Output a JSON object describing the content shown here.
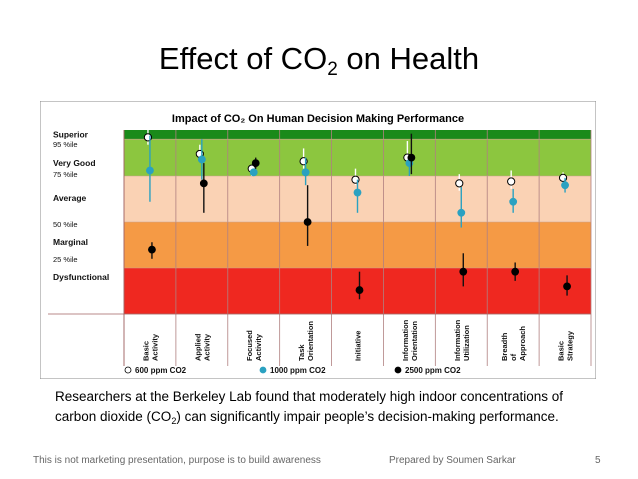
{
  "slide": {
    "title_main": "Effect of CO",
    "title_sub": "2",
    "title_end": " on Health",
    "caption_part1": "Researchers at the Berkeley Lab found that moderately high indoor concentrations of carbon dioxide (CO",
    "caption_sub": "2",
    "caption_part2": ") can significantly impair people’s decision-making performance.",
    "footer_left": "This is not marketing presentation, purpose is to build awareness",
    "footer_center": "Prepared by Soumen Sarkar",
    "page_number": "5"
  },
  "chart_data": {
    "type": "scatter",
    "title": "Impact of CO₂ On Human Decision Making Performance",
    "bands": [
      {
        "name": "Superior",
        "from": 95,
        "to": 100,
        "color": "#1a8a1a"
      },
      {
        "name": "Very Good",
        "from": 75,
        "to": 95,
        "color": "#8cc63f"
      },
      {
        "name": "Average",
        "from": 50,
        "to": 75,
        "color": "#fad2b4"
      },
      {
        "name": "Marginal",
        "from": 25,
        "to": 50,
        "color": "#f59a45"
      },
      {
        "name": "Dysfunctional",
        "from": 0,
        "to": 25,
        "color": "#ef2820"
      }
    ],
    "y_labels": [
      {
        "text": "Superior",
        "value": 97.5,
        "bold": true
      },
      {
        "text": "95 %ile",
        "value": 92.5,
        "bold": false
      },
      {
        "text": "Very Good",
        "value": 82,
        "bold": true
      },
      {
        "text": "75 %ile",
        "value": 76,
        "bold": false
      },
      {
        "text": "Average",
        "value": 63,
        "bold": true
      },
      {
        "text": "50 %ile",
        "value": 49,
        "bold": false
      },
      {
        "text": "Marginal",
        "value": 39,
        "bold": true
      },
      {
        "text": "25 %ile",
        "value": 30,
        "bold": false
      },
      {
        "text": "Dysfunctional",
        "value": 20,
        "bold": true
      }
    ],
    "ylim": [
      0,
      100
    ],
    "categories": [
      "Basic Activity",
      "Applied Activity",
      "Focused Activity",
      "Task Orientation",
      "Initiative",
      "Information Orientation",
      "Information Utilization",
      "Breadth of Approach",
      "Basic Strategy"
    ],
    "series": [
      {
        "name": "600 ppm CO2",
        "color": "#ffffff",
        "stroke": "#000000",
        "values": [
          96,
          87,
          79,
          83,
          73,
          85,
          71,
          72,
          74
        ],
        "err_low": [
          92,
          84,
          75,
          79,
          70,
          82,
          67,
          68,
          71
        ],
        "err_high": [
          100,
          92,
          81,
          90,
          79,
          94,
          76,
          78,
          77
        ]
      },
      {
        "name": "1000 ppm CO2",
        "color": "#2aa1c1",
        "stroke": "#2aa1c1",
        "values": [
          78,
          84,
          77,
          77,
          66,
          82,
          55,
          61,
          70
        ],
        "err_low": [
          61,
          73,
          75,
          70,
          55,
          75,
          47,
          55,
          66
        ],
        "err_high": [
          97,
          95,
          79,
          85,
          73,
          86,
          69,
          68,
          74
        ]
      },
      {
        "name": "2500 ppm CO2",
        "color": "#000000",
        "stroke": "#000000",
        "values": [
          35,
          71,
          82,
          50,
          13,
          85,
          23,
          23,
          15
        ],
        "err_low": [
          30,
          55,
          79,
          37,
          8,
          76,
          15,
          18,
          10
        ],
        "err_high": [
          39,
          82,
          85,
          70,
          23,
          98,
          33,
          28,
          21
        ]
      }
    ],
    "legend_position": "bottom",
    "grid": true
  }
}
